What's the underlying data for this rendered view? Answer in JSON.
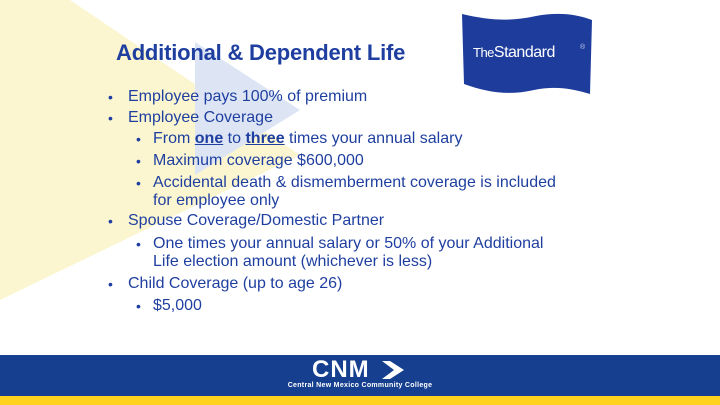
{
  "title": "Additional & Dependent Life",
  "logo": {
    "the": "The",
    "name": "Standard",
    "reg": "®"
  },
  "bullets": {
    "b1": "Employee pays 100% of premium",
    "b2": "Employee Coverage",
    "b2a_pre": "From ",
    "b2a_one": "one",
    "b2a_to": " to ",
    "b2a_three": "three",
    "b2a_post": " times your annual salary",
    "b2b": "Maximum coverage $600,000",
    "b2c_line1": "Accidental death & dismemberment coverage is included",
    "b2c_line2": "for employee only",
    "b3": "Spouse Coverage/Domestic Partner",
    "b3a_line1": "One times your annual salary or 50% of your Additional",
    "b3a_line2": "Life election amount (whichever is less)",
    "b4": "Child Coverage (up to age 26)",
    "b4a": "$5,000"
  },
  "footer": {
    "brand": "CNM",
    "subtitle": "Central New Mexico Community College"
  },
  "colors": {
    "text": "#1f3fa0",
    "footer": "#16408f",
    "stripe": "#ffd21e",
    "decor_yellow": "#fbf6cf",
    "decor_blue": "#dde5f5",
    "logo_blue": "#1d3c9c"
  }
}
